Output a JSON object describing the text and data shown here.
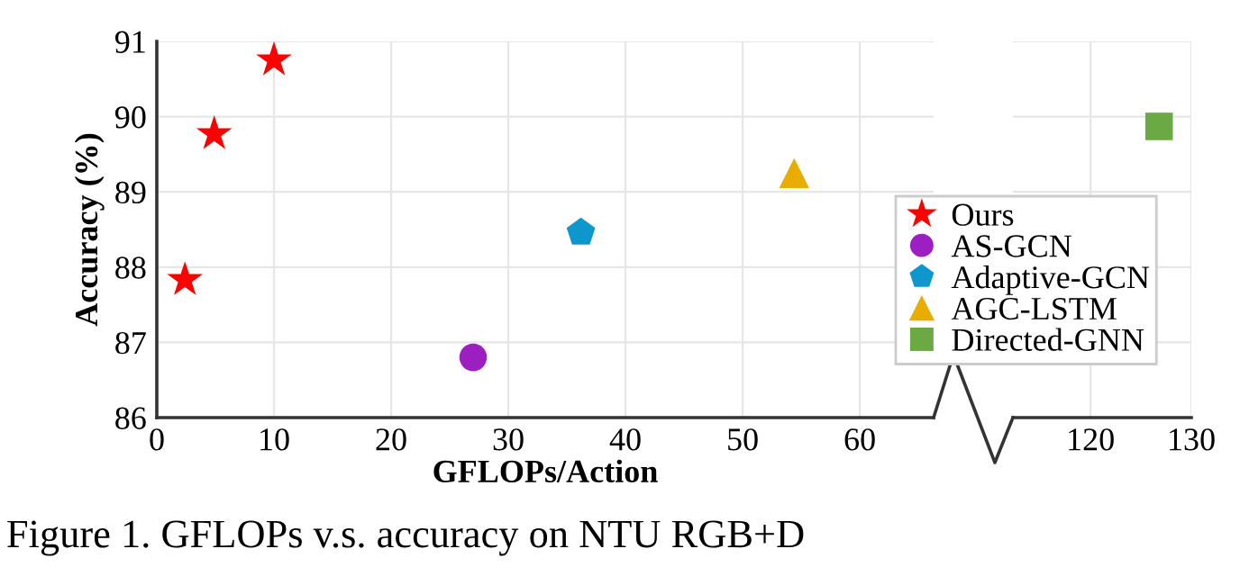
{
  "chart_data": [
    {
      "type": "scatter",
      "xlabel": "GFLOPs/Action",
      "ylabel": "Accuracy (%)",
      "series": [
        {
          "name": "Ours",
          "color": "#ff0000",
          "marker": "star",
          "x": [
            2.4,
            4.9,
            10.0
          ],
          "values": [
            87.83,
            89.77,
            90.75
          ]
        },
        {
          "name": "AS-GCN",
          "color": "#9b1fc1",
          "marker": "circle",
          "x": [
            27.0
          ],
          "values": [
            86.8
          ]
        },
        {
          "name": "Adaptive-GCN",
          "color": "#0e97cc",
          "x": [
            36.2
          ],
          "values": [
            88.46
          ]
        },
        {
          "name": "AGC-LSTM",
          "color": "#e8ad00",
          "marker": "triangle",
          "x": [
            54.4
          ],
          "values": [
            89.25
          ]
        }
      ],
      "xlim": [
        0,
        66.3
      ],
      "xticks": [
        0,
        10,
        20,
        30,
        40,
        50,
        60
      ],
      "ylim": [
        86,
        91
      ],
      "yticks": [
        86,
        87,
        88,
        89,
        90,
        91
      ],
      "grid": true,
      "legend": "right",
      "annotations": [
        "Figure 1. GFLOPs v.s. accuracy on NTU RGB+D"
      ]
    },
    {
      "type": "scatter",
      "series": [
        {
          "name": "Directed-GNN",
          "color": "#6aa943",
          "marker": "square",
          "x": [
            126.8
          ],
          "values": [
            89.87
          ]
        }
      ],
      "xlim": [
        112.3,
        130
      ],
      "xticks": [
        120,
        130
      ],
      "ylim": [
        86,
        91
      ],
      "yticks": [
        86,
        87,
        88,
        89,
        90,
        91
      ],
      "tick_labels": "x",
      "grid": true,
      "legend": "bottom left"
    }
  ]
}
